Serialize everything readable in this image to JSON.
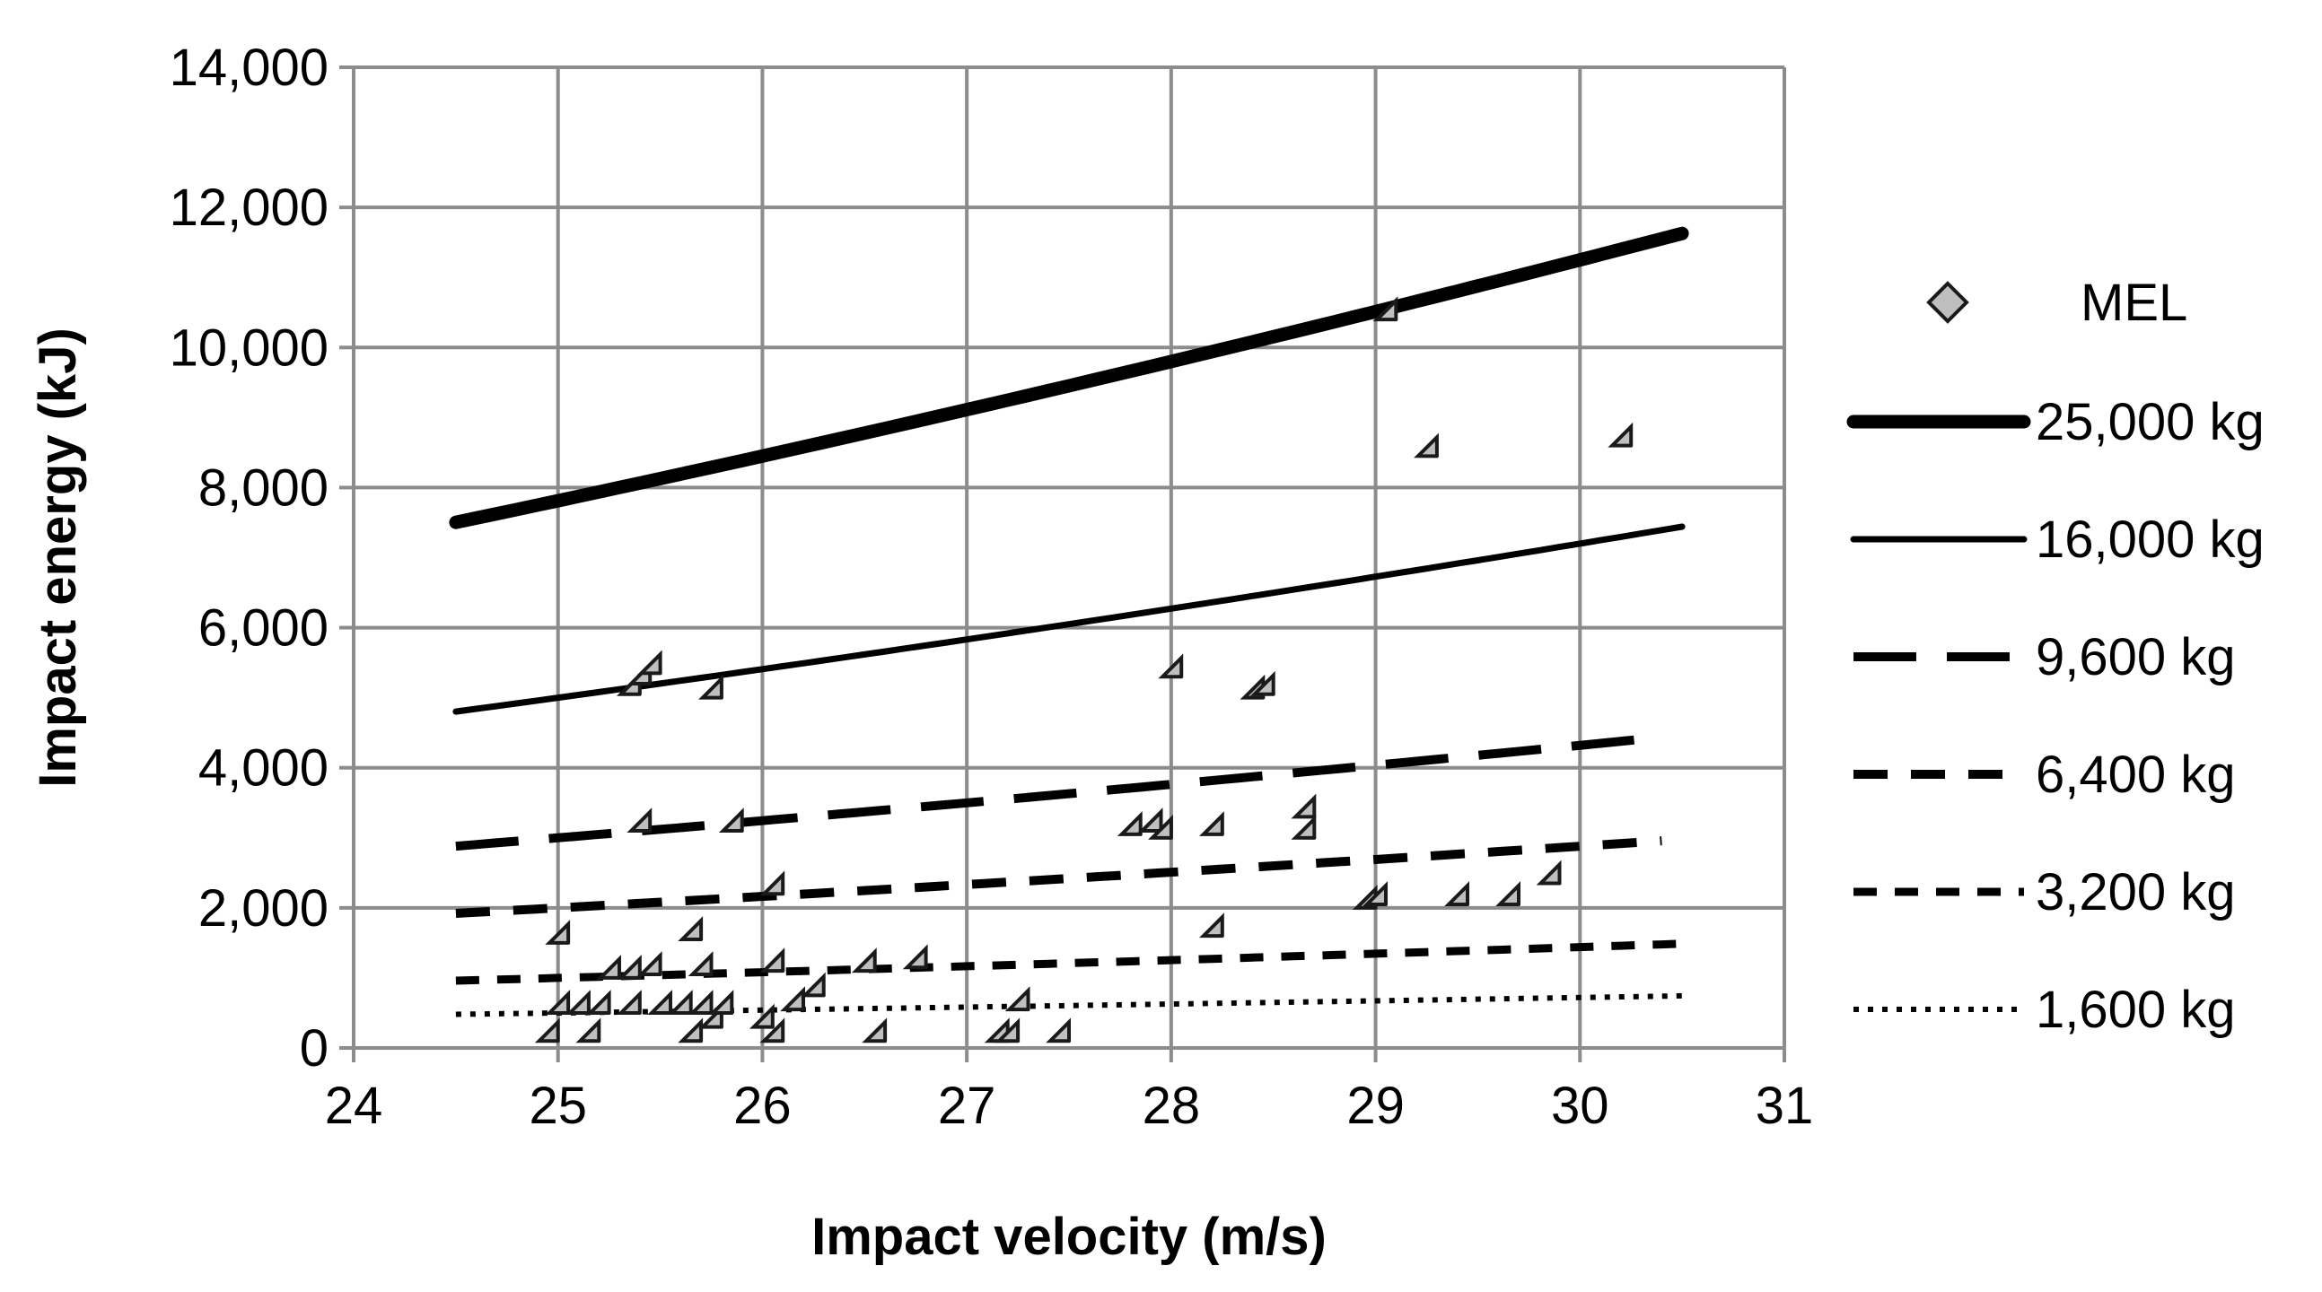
{
  "chart_data": {
    "type": "scatter",
    "xlabel": "Impact velocity (m/s)",
    "ylabel": "Impact energy (kJ)",
    "xlim": [
      24,
      31
    ],
    "ylim": [
      0,
      14000
    ],
    "x_ticks": [
      24,
      25,
      26,
      27,
      28,
      29,
      30,
      31
    ],
    "x_tick_labels": [
      "24",
      "25",
      "26",
      "27",
      "28",
      "29",
      "30",
      "31"
    ],
    "y_ticks": [
      0,
      2000,
      4000,
      6000,
      8000,
      10000,
      12000,
      14000
    ],
    "y_tick_labels": [
      "0",
      "2,000",
      "4,000",
      "6,000",
      "8,000",
      "10,000",
      "12,000",
      "14,000"
    ],
    "grid": true,
    "legend_position": "right",
    "scatter": {
      "name": "MEL",
      "marker": "diamond",
      "color": "#bfbfbf",
      "points": [
        [
          25.0,
          100
        ],
        [
          25.05,
          1500
        ],
        [
          25.05,
          500
        ],
        [
          25.15,
          500
        ],
        [
          25.2,
          100
        ],
        [
          25.25,
          500
        ],
        [
          25.3,
          1000
        ],
        [
          25.4,
          1000
        ],
        [
          25.4,
          500
        ],
        [
          25.4,
          5050
        ],
        [
          25.45,
          5200
        ],
        [
          25.45,
          3100
        ],
        [
          25.5,
          1050
        ],
        [
          25.5,
          5350
        ],
        [
          25.55,
          500
        ],
        [
          25.65,
          500
        ],
        [
          25.7,
          1550
        ],
        [
          25.7,
          100
        ],
        [
          25.75,
          1050
        ],
        [
          25.75,
          500
        ],
        [
          25.8,
          300
        ],
        [
          25.8,
          5000
        ],
        [
          25.85,
          500
        ],
        [
          25.9,
          3100
        ],
        [
          26.05,
          300
        ],
        [
          26.1,
          100
        ],
        [
          26.1,
          1100
        ],
        [
          26.1,
          2200
        ],
        [
          26.2,
          550
        ],
        [
          26.3,
          750
        ],
        [
          26.55,
          1100
        ],
        [
          26.6,
          100
        ],
        [
          26.8,
          1150
        ],
        [
          27.2,
          100
        ],
        [
          27.25,
          100
        ],
        [
          27.3,
          550
        ],
        [
          27.5,
          100
        ],
        [
          27.85,
          3050
        ],
        [
          27.95,
          3100
        ],
        [
          28.0,
          3000
        ],
        [
          28.05,
          5300
        ],
        [
          28.25,
          3050
        ],
        [
          28.25,
          1600
        ],
        [
          28.45,
          5000
        ],
        [
          28.5,
          5050
        ],
        [
          28.7,
          3300
        ],
        [
          28.7,
          3000
        ],
        [
          29.0,
          2000
        ],
        [
          29.05,
          2050
        ],
        [
          29.1,
          10400
        ],
        [
          29.3,
          8450
        ],
        [
          29.45,
          2050
        ],
        [
          29.7,
          2050
        ],
        [
          29.9,
          2350
        ],
        [
          30.25,
          8600
        ]
      ]
    },
    "series": [
      {
        "name": "25,000 kg",
        "mass_kg": 25000,
        "style": "solid-thick",
        "x": [
          24.5,
          30.5
        ],
        "values": [
          7503,
          11628
        ]
      },
      {
        "name": "16,000 kg",
        "mass_kg": 16000,
        "style": "solid",
        "x": [
          24.5,
          30.5
        ],
        "values": [
          4802,
          7442
        ]
      },
      {
        "name": "9,600 kg",
        "mass_kg": 9600,
        "style": "long-dash",
        "x": [
          24.5,
          30.4
        ],
        "values": [
          2881,
          4436
        ]
      },
      {
        "name": "6,400 kg",
        "mass_kg": 6400,
        "style": "dash",
        "x": [
          24.5,
          30.4
        ],
        "values": [
          1921,
          2957
        ]
      },
      {
        "name": "3,200 kg",
        "mass_kg": 3200,
        "style": "short-dash",
        "x": [
          24.5,
          30.5
        ],
        "values": [
          960,
          1488
        ]
      },
      {
        "name": "1,600 kg",
        "mass_kg": 1600,
        "style": "dotted",
        "x": [
          24.5,
          30.5
        ],
        "values": [
          480,
          744
        ]
      }
    ]
  }
}
